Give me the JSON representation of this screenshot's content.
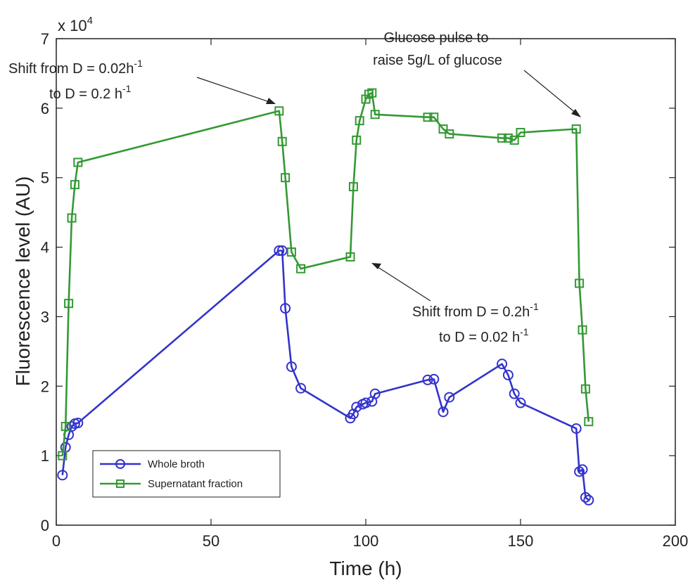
{
  "chart_data": {
    "type": "line",
    "xlabel": "Time (h)",
    "ylabel": "Fluorescence level (AU)",
    "xlim": [
      0,
      200
    ],
    "ylim": [
      0,
      7
    ],
    "xticks": [
      "0",
      "50",
      "100",
      "150",
      "200"
    ],
    "yticks": [
      "0",
      "1",
      "2",
      "3",
      "4",
      "5",
      "6",
      "7"
    ],
    "y_multiplier_base": "x 10",
    "y_multiplier_exp": "4",
    "grid": false,
    "legend_position": "bottom-left",
    "series": [
      {
        "name": "Whole broth",
        "color": "#3333cc",
        "marker": "circle",
        "x": [
          2,
          3,
          4,
          5,
          6,
          7,
          72,
          73,
          74,
          76,
          79,
          95,
          96,
          97,
          99,
          100,
          102,
          103,
          120,
          122,
          125,
          127,
          144,
          146,
          148,
          150,
          168,
          169,
          170,
          171,
          172
        ],
        "y": [
          0.72,
          1.12,
          1.3,
          1.42,
          1.46,
          1.47,
          3.95,
          3.95,
          3.12,
          2.28,
          1.97,
          1.54,
          1.6,
          1.7,
          1.74,
          1.76,
          1.78,
          1.89,
          2.09,
          2.1,
          1.63,
          1.84,
          2.32,
          2.16,
          1.89,
          1.76,
          1.39,
          0.77,
          0.8,
          0.4,
          0.36
        ]
      },
      {
        "name": "Supernatant fraction",
        "color": "#339933",
        "marker": "square",
        "x": [
          2,
          3,
          4,
          5,
          6,
          7,
          72,
          73,
          74,
          76,
          79,
          95,
          96,
          97,
          98,
          100,
          101,
          102,
          103,
          120,
          122,
          125,
          127,
          144,
          146,
          148,
          150,
          168,
          169,
          170,
          171,
          172
        ],
        "y": [
          1.0,
          1.42,
          3.19,
          4.42,
          4.9,
          5.22,
          5.96,
          5.52,
          5.0,
          3.93,
          3.69,
          3.86,
          4.87,
          5.54,
          5.82,
          6.13,
          6.2,
          6.22,
          5.91,
          5.87,
          5.87,
          5.7,
          5.63,
          5.57,
          5.57,
          5.54,
          5.65,
          5.7,
          3.48,
          2.81,
          1.96,
          1.49
        ]
      }
    ],
    "annotations": [
      {
        "id": "shift-up",
        "lines": [
          {
            "text": "Shift from D = 0.02h",
            "sup": "-1"
          },
          {
            "text": "to D = 0.2 h",
            "sup": "-1"
          }
        ],
        "target": [
          72,
          5.96
        ]
      },
      {
        "id": "glucose-pulse",
        "lines": [
          {
            "text": "Glucose pulse to",
            "sup": ""
          },
          {
            "text": "raise 5g/L of glucose",
            "sup": ""
          }
        ],
        "target": [
          169,
          5.88
        ]
      },
      {
        "id": "shift-down",
        "lines": [
          {
            "text": "Shift from D = 0.2h",
            "sup": "-1"
          },
          {
            "text": "to D = 0.02 h",
            "sup": "-1"
          }
        ],
        "target": [
          101,
          3.72
        ]
      }
    ]
  }
}
